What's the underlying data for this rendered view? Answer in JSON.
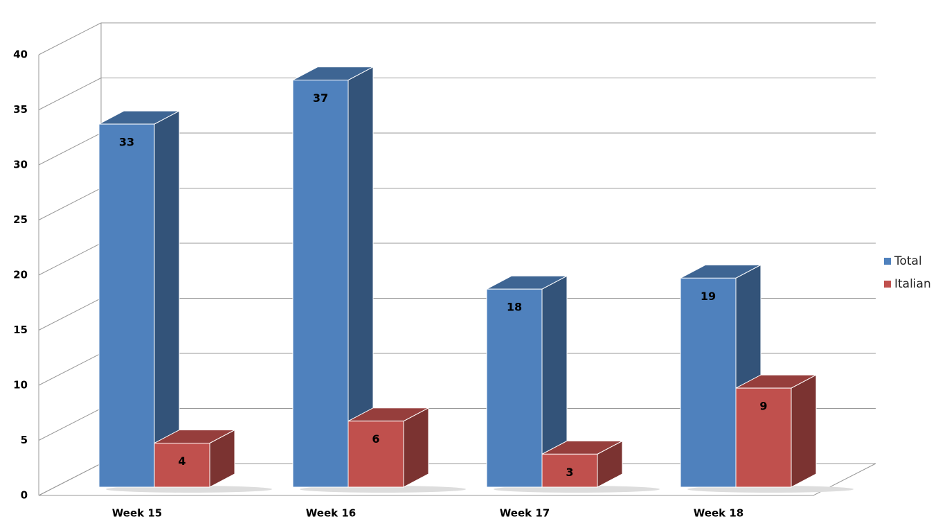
{
  "chart_data": {
    "type": "bar",
    "categories": [
      "Week 15",
      "Week 16",
      "Week 17",
      "Week 18"
    ],
    "series": [
      {
        "name": "Total",
        "color": "#4f81bd",
        "values": [
          33,
          37,
          18,
          19
        ]
      },
      {
        "name": "Italian",
        "color": "#c0504d",
        "values": [
          4,
          6,
          3,
          9
        ]
      }
    ],
    "ylim": [
      0,
      40
    ],
    "yticks": [
      0,
      5,
      10,
      15,
      20,
      25,
      30,
      35,
      40
    ],
    "grid": true,
    "legend": "right"
  }
}
